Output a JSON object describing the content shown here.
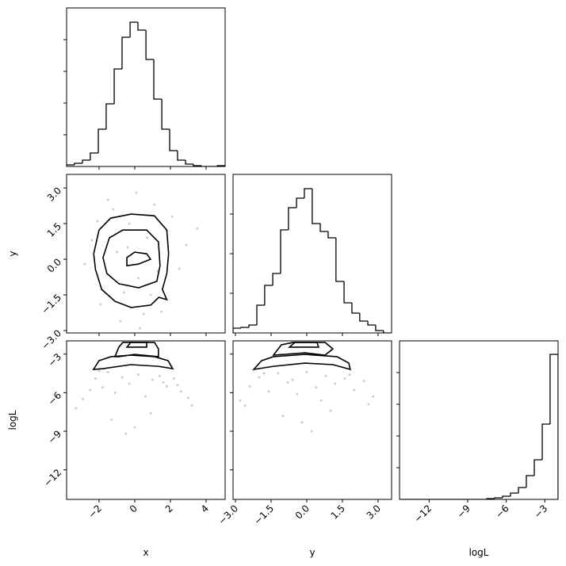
{
  "chart_data": [
    {
      "type": "histogram",
      "color": "#000000",
      "bins": [
        -3.82,
        -3.38,
        -2.93,
        -2.49,
        -2.04,
        -1.6,
        -1.15,
        -0.71,
        -0.26,
        0.18,
        0.63,
        1.07,
        1.52,
        1.96,
        2.4,
        2.85,
        3.29,
        3.74,
        4.18,
        4.63,
        5.07
      ],
      "values": [
        2,
        4,
        8,
        17,
        47,
        79,
        123,
        163,
        182,
        172,
        135,
        85,
        47,
        20,
        8,
        3,
        1,
        0,
        0,
        1
      ],
      "xlim": [
        -3.82,
        5.07
      ],
      "ylim": [
        0,
        200
      ],
      "xticks": [
        -2,
        0,
        2,
        4
      ],
      "yticks": [
        40,
        80,
        120,
        160
      ]
    },
    {
      "type": "scatter",
      "color": "#999999",
      "contour_color": "#000000",
      "x": [
        -1.2,
        0.5,
        1.8,
        -2.4,
        0.1,
        2.5,
        -0.8,
        1.1,
        -1.9,
        0.3,
        -0.3,
        2.1,
        -2.8,
        0.9,
        -1.5,
        1.5,
        -0.6,
        0.7,
        -2.1,
        2.9,
        -1.0,
        0.2,
        1.3,
        -0.4,
        3.5
      ],
      "y": [
        2.1,
        -2.3,
        1.2,
        0.8,
        2.8,
        -0.4,
        -2.6,
        2.3,
        -1.9,
        -2.9,
        1.5,
        1.8,
        -0.2,
        -1.5,
        2.5,
        -2.2,
        -1.4,
        0.9,
        1.6,
        0.6,
        0.3,
        -0.8,
        -0.5,
        0.5,
        1.3
      ],
      "contours": [
        {
          "x": [
            -2.3,
            -2.0,
            -1.35,
            -0.2,
            1.1,
            1.8,
            1.9,
            1.8,
            1.55,
            1.8,
            1.35,
            0.9,
            -0.2,
            -1.1,
            -1.85,
            -2.2
          ],
          "y": [
            0.23,
            1.23,
            1.73,
            1.9,
            1.83,
            1.23,
            0.23,
            -0.6,
            -1.27,
            -1.7,
            -1.6,
            -1.93,
            -2.03,
            -1.77,
            -1.27,
            -0.43
          ]
        },
        {
          "x": [
            -1.78,
            -1.42,
            -0.67,
            0.67,
            1.33,
            1.42,
            1.24,
            0.22,
            -0.89,
            -1.56
          ],
          "y": [
            0.07,
            0.9,
            1.23,
            1.23,
            0.73,
            -0.27,
            -0.93,
            -1.2,
            -1.03,
            -0.6
          ]
        },
        {
          "x": [
            -0.44,
            0,
            0.67,
            0.89,
            0.22,
            -0.44
          ],
          "y": [
            0.07,
            0.3,
            0.23,
            0,
            -0.2,
            -0.27
          ]
        }
      ],
      "xlim": [
        -3.82,
        5.07
      ],
      "ylim": [
        -3.1,
        3.57
      ],
      "xticks": [
        -2,
        0,
        2,
        4
      ],
      "yticks": [
        {
          "value": 3,
          "label": "3.0"
        },
        1.5,
        {
          "value": 0,
          "label": "0.0"
        },
        {
          "value": -1.5,
          "label": "−1.5"
        },
        {
          "value": -3,
          "label": "−3.0"
        }
      ],
      "ylabel": "y"
    },
    {
      "type": "histogram",
      "color": "#000000",
      "bins": [
        -3.1,
        -2.77,
        -2.43,
        -2.1,
        -1.77,
        -1.43,
        -1.1,
        -0.77,
        -0.43,
        -0.1,
        0.23,
        0.57,
        0.9,
        1.23,
        1.57,
        1.9,
        2.23,
        2.57,
        2.9,
        3.23,
        3.57
      ],
      "values": [
        6,
        7,
        10,
        35,
        60,
        75,
        130,
        158,
        170,
        182,
        138,
        128,
        120,
        65,
        38,
        25,
        15,
        10,
        3,
        0
      ],
      "xlim": [
        -3.1,
        3.57
      ],
      "ylim": [
        0,
        200
      ],
      "xticks": [
        -3,
        -1.5,
        0,
        1.5,
        3
      ],
      "yticks": [
        50,
        100,
        150
      ]
    },
    {
      "type": "scatter",
      "color": "#999999",
      "contour_color": "#000000",
      "x": [
        -2.9,
        -2.5,
        -2.2,
        -1.8,
        -1.5,
        -1.1,
        -0.7,
        -0.3,
        0.2,
        0.6,
        1.0,
        1.4,
        1.8,
        2.2,
        2.6,
        3.0,
        -3.3,
        3.2,
        -1.3,
        0.9,
        -0.5,
        1.6,
        -2.0,
        2.4,
        0.0
      ],
      "y": [
        -6.5,
        -5.8,
        -4.9,
        -5.6,
        -4.4,
        -6.0,
        -4.8,
        -5.3,
        -4.6,
        -6.3,
        -5.0,
        -4.7,
        -5.5,
        -4.9,
        -5.9,
        -6.4,
        -7.2,
        -7.0,
        -8.1,
        -7.6,
        -9.2,
        -5.2,
        -4.3,
        -5.4,
        -8.7
      ],
      "contours": [
        {
          "x": [
            -2.31,
            -2.0,
            -1.33,
            -0.22,
            1.11,
            1.87,
            2.13,
            1.33,
            -0.22,
            -1.78
          ],
          "y": [
            -4.19,
            -3.51,
            -3.2,
            -3.08,
            -3.2,
            -3.51,
            -4.13,
            -3.95,
            -3.82,
            -4.13
          ]
        },
        {
          "x": [
            -1.11,
            -0.89,
            -0.67,
            1.11,
            1.33,
            1.33,
            0,
            -0.89
          ],
          "y": [
            -3.2,
            -2.46,
            -2.09,
            -2.09,
            -2.59,
            -3.2,
            -3.02,
            -3.2
          ]
        },
        {
          "x": [
            -0.44,
            -0.22,
            0.67,
            0.67
          ],
          "y": [
            -2.46,
            -2.09,
            -2.09,
            -2.46
          ]
        }
      ],
      "xlim": [
        -3.82,
        5.07
      ],
      "ylim": [
        -14.3,
        -1.97
      ],
      "xticks": [
        {
          "value": -2,
          "label": "−2"
        },
        0,
        2,
        4
      ],
      "yticks": [
        {
          "value": -3,
          "label": "−3"
        },
        {
          "value": -6,
          "label": "−6"
        },
        {
          "value": -9,
          "label": "−9"
        },
        {
          "value": -12,
          "label": "−12"
        }
      ],
      "xlabel": "x",
      "ylabel": "logL"
    },
    {
      "type": "scatter",
      "color": "#999999",
      "contour_color": "#000000",
      "x": [
        -2.8,
        -2.4,
        -2.0,
        -1.6,
        -1.2,
        -0.8,
        -0.4,
        0.0,
        0.4,
        0.8,
        1.2,
        1.6,
        2.0,
        2.4,
        2.8,
        -2.6,
        2.6,
        -1.0,
        1.0,
        0.2,
        -0.2,
        1.8,
        -1.8,
        -0.6,
        0.6
      ],
      "y": [
        -6.6,
        -5.5,
        -4.8,
        -5.9,
        -4.5,
        -5.2,
        -6.1,
        -4.4,
        -5.6,
        -4.7,
        -5.3,
        -4.9,
        -5.8,
        -5.1,
        -6.3,
        -7.0,
        -6.9,
        -7.8,
        -7.4,
        -9.0,
        -8.3,
        -4.6,
        -4.5,
        -5.0,
        -6.6
      ],
      "contours": [
        {
          "x": [
            -2.23,
            -1.9,
            -1.4,
            -0.07,
            1.27,
            1.77,
            1.83,
            1.1,
            -0.07,
            -1.4
          ],
          "y": [
            -4.19,
            -3.51,
            -3.2,
            -3.02,
            -3.2,
            -3.7,
            -4.19,
            -3.82,
            -3.7,
            -3.95
          ]
        },
        {
          "x": [
            -1.4,
            -1.07,
            -0.57,
            0.77,
            1.1,
            0.77,
            -0.07
          ],
          "y": [
            -3.08,
            -2.28,
            -2.09,
            -2.09,
            -2.59,
            -3.08,
            -2.9
          ]
        },
        {
          "x": [
            -0.73,
            -0.5,
            0.43,
            0.5
          ],
          "y": [
            -2.46,
            -2.09,
            -2.09,
            -2.46
          ]
        }
      ],
      "xlim": [
        -3.1,
        3.57
      ],
      "ylim": [
        -14.3,
        -1.97
      ],
      "xticks": [
        {
          "value": -3,
          "label": "−3.0"
        },
        {
          "value": -1.5,
          "label": "−1.5"
        },
        {
          "value": 0,
          "label": "0.0"
        },
        1.5,
        {
          "value": 3,
          "label": "3.0"
        }
      ],
      "yticks": [
        -3,
        -6,
        -9,
        -12
      ],
      "xlabel": "y"
    },
    {
      "type": "histogram",
      "color": "#000000",
      "bins": [
        -14.3,
        -13.68,
        -13.07,
        -12.45,
        -11.83,
        -11.22,
        -10.6,
        -9.98,
        -9.37,
        -8.75,
        -8.14,
        -7.52,
        -6.9,
        -6.29,
        -5.67,
        -5.05,
        -4.44,
        -3.82,
        -3.2,
        -2.59,
        -1.97
      ],
      "values": [
        0,
        0,
        0,
        0,
        0,
        0,
        0,
        0,
        0,
        0,
        0,
        1,
        2,
        4,
        8,
        15,
        30,
        50,
        95,
        183
      ],
      "xlim": [
        -14.3,
        -1.97
      ],
      "ylim": [
        0,
        200
      ],
      "xticks": [
        {
          "value": -12,
          "label": "−12"
        },
        {
          "value": -9,
          "label": "−9"
        },
        {
          "value": -6,
          "label": "−6"
        },
        {
          "value": -3,
          "label": "−3"
        }
      ],
      "yticks": [
        40,
        80,
        120,
        160
      ],
      "xlabel": "logL"
    }
  ]
}
